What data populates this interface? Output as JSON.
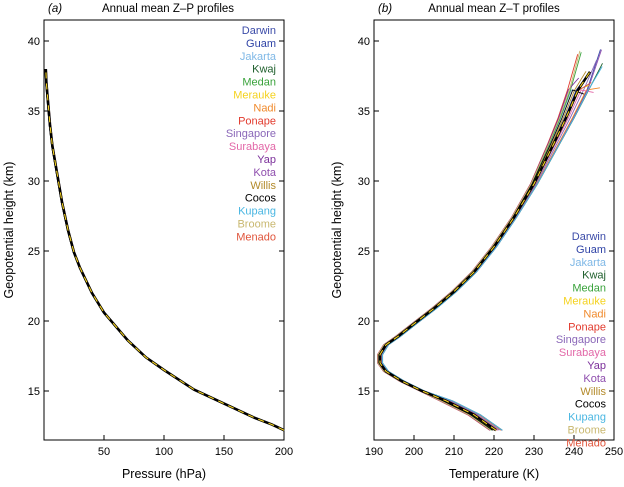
{
  "chart_data": [
    {
      "type": "line",
      "panel_label": "(a)",
      "title": "Annual mean Z–P profiles",
      "xlabel": "Pressure (hPa)",
      "ylabel": "Geopotential height (km)",
      "xlim": [
        0,
        200
      ],
      "ylim": [
        11.5,
        41.5
      ],
      "xticks": [
        "50",
        "100",
        "150",
        "200"
      ],
      "yticks": [
        "15",
        "20",
        "25",
        "30",
        "35",
        "40"
      ],
      "legend_position": "top-right",
      "series_names": [
        "Darwin",
        "Guam",
        "Jakarta",
        "Kwaj",
        "Medan",
        "Merauke",
        "Nadi",
        "Ponape",
        "Singapore",
        "Surabaya",
        "Yap",
        "Kota",
        "Willis",
        "Cocos",
        "Kupang",
        "Broome",
        "Menado"
      ],
      "mean_profile": {
        "x": [
          200,
          190,
          175,
          150,
          125,
          100,
          85,
          70,
          60,
          50,
          40,
          30,
          25,
          20,
          15,
          10,
          7,
          5,
          3,
          2,
          1.5
        ],
        "y": [
          12.2,
          12.6,
          13.1,
          14.1,
          15.1,
          16.5,
          17.4,
          18.6,
          19.6,
          20.6,
          22.0,
          23.8,
          24.9,
          26.5,
          28.5,
          31.0,
          32.5,
          34.0,
          36.0,
          37.0,
          38.0
        ]
      }
    },
    {
      "type": "line",
      "panel_label": "(b)",
      "title": "Annual mean Z–T profiles",
      "xlabel": "Temperature (K)",
      "ylabel": "Geopotential height (km)",
      "xlim": [
        190,
        250
      ],
      "ylim": [
        11.5,
        41.5
      ],
      "xticks": [
        "190",
        "200",
        "210",
        "220",
        "230",
        "240",
        "250"
      ],
      "yticks": [
        "15",
        "20",
        "25",
        "30",
        "35",
        "40"
      ],
      "legend_position": "bottom-right",
      "series_names": [
        "Darwin",
        "Guam",
        "Jakarta",
        "Kwaj",
        "Medan",
        "Merauke",
        "Nadi",
        "Ponape",
        "Singapore",
        "Surabaya",
        "Yap",
        "Kota",
        "Willis",
        "Cocos",
        "Kupang",
        "Broome",
        "Menado"
      ],
      "mean_profile": {
        "x": [
          220.5,
          215,
          208,
          202,
          197,
          193,
          191.5,
          191.5,
          193,
          196,
          200,
          205,
          210,
          215,
          220,
          225,
          230,
          235,
          238,
          241,
          244
        ],
        "y": [
          12.2,
          13.3,
          14.3,
          15.0,
          15.7,
          16.4,
          17.0,
          17.6,
          18.3,
          18.9,
          19.8,
          20.9,
          22.1,
          23.5,
          25.3,
          27.4,
          29.8,
          32.7,
          34.5,
          36.5,
          37.8
        ]
      }
    }
  ],
  "series_colors": [
    "#3b4ba8",
    "#2f43a6",
    "#7fb8e6",
    "#1d5e2b",
    "#3aa33c",
    "#f4d21f",
    "#f08a2c",
    "#e23b2e",
    "#8a67b8",
    "#e267a7",
    "#7b2f9a",
    "#8f4fae",
    "#b38a2a",
    "#000000",
    "#49b6e2",
    "#c9b870",
    "#e0553c"
  ]
}
